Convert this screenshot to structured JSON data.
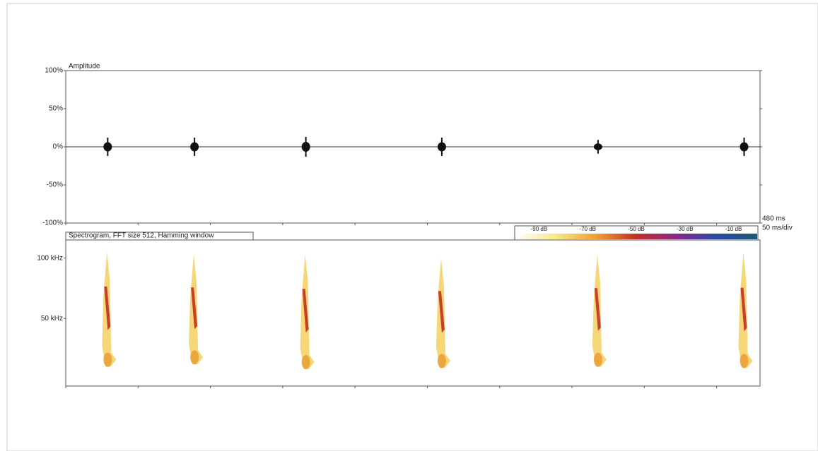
{
  "chart_data": [
    {
      "type": "waveform",
      "title": "Amplitude",
      "x": [
        29,
        89,
        166,
        260,
        368,
        469
      ],
      "values": [
        12,
        12,
        13,
        12,
        9,
        12
      ],
      "color": "#111111",
      "xlim": [
        0,
        480
      ],
      "xticks": [
        0,
        50,
        100,
        150,
        200,
        250,
        300,
        350,
        400,
        450
      ],
      "ylim": [
        -100,
        100
      ],
      "yticks": [
        {
          "value": 100,
          "label": "100%"
        },
        {
          "value": 50,
          "label": "50%"
        },
        {
          "value": 0,
          "label": "0%"
        },
        {
          "value": -50,
          "label": "-50%"
        },
        {
          "value": -100,
          "label": "-100%"
        }
      ],
      "x_end_label": "480 ms",
      "x_division_label": "50 ms/div"
    },
    {
      "type": "spectrogram",
      "title": "Spectrogram, FFT size 512, Hamming window",
      "x": [
        29,
        89,
        166,
        260,
        368,
        469
      ],
      "values": [
        [
          10,
          105
        ],
        [
          12,
          103
        ],
        [
          8,
          103
        ],
        [
          9,
          100
        ],
        [
          10,
          103
        ],
        [
          9,
          104
        ]
      ],
      "xlim": [
        0,
        480
      ],
      "xticks": [
        0,
        50,
        100,
        150,
        200,
        250,
        300,
        350,
        400,
        450
      ],
      "ylim": [
        -6,
        115
      ],
      "yticks": [
        {
          "value": 100,
          "label": "100 kHz"
        },
        {
          "value": 50,
          "label": "50 kHz"
        }
      ],
      "colorbar": {
        "ticks": [
          {
            "value": -90,
            "label": "-90 dB"
          },
          {
            "value": -70,
            "label": "-70 dB"
          },
          {
            "value": -50,
            "label": "-50 dB"
          },
          {
            "value": -30,
            "label": "-30 dB"
          },
          {
            "value": -10,
            "label": "-10 dB"
          }
        ],
        "colors": [
          "#ffffff",
          "#f7e98a",
          "#f0a030",
          "#c0302a",
          "#8a2a8a",
          "#2a4aa0",
          "#1a5a7a"
        ]
      }
    }
  ]
}
